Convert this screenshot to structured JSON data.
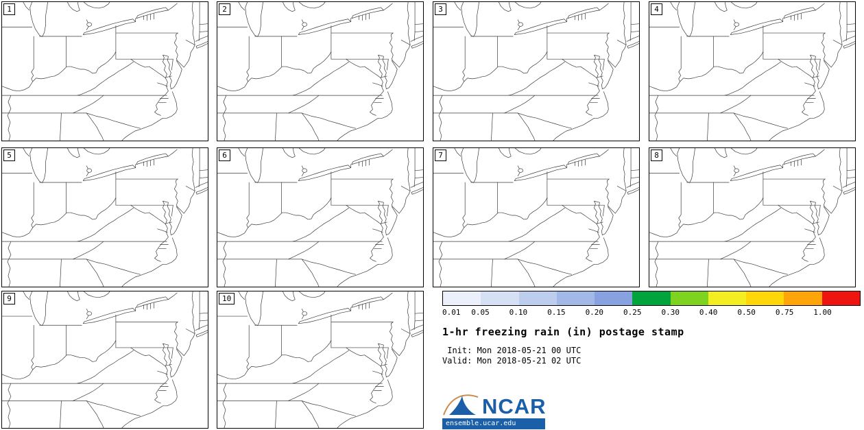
{
  "panels": [
    {
      "label": "1"
    },
    {
      "label": "2"
    },
    {
      "label": "3"
    },
    {
      "label": "4"
    },
    {
      "label": "5"
    },
    {
      "label": "6"
    },
    {
      "label": "7"
    },
    {
      "label": "8"
    },
    {
      "label": "9"
    },
    {
      "label": "10"
    }
  ],
  "colorbar": {
    "ticks": [
      "0.01",
      "0.05",
      "0.10",
      "0.15",
      "0.20",
      "0.25",
      "0.30",
      "0.40",
      "0.50",
      "0.75",
      "1.00"
    ],
    "segments": [
      "#ecf0fa",
      "#d6e0f4",
      "#bccdee",
      "#a2b9e8",
      "#88a1e0",
      "#00a33c",
      "#7ed321",
      "#f2ee21",
      "#ffd60a",
      "#ffa50a",
      "#ee1410"
    ]
  },
  "info": {
    "title": "1-hr freezing rain (in) postage stamp",
    "init_line": " Init: Mon 2018-05-21 00 UTC",
    "valid_line": "Valid: Mon 2018-05-21 02 UTC",
    "logo_text": "NCAR",
    "logo_url": "ensemble.ucar.edu",
    "logo_color": "#1a5fa8",
    "swoosh_color": "#c98a4b"
  }
}
